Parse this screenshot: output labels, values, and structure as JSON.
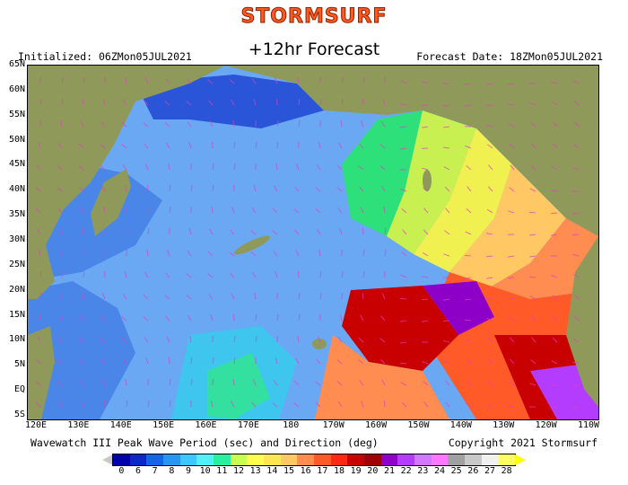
{
  "header": {
    "brand": "Stormsurf",
    "subtitle": "+12hr Forecast",
    "initialized": "Initialized: 06ZMon05JUL2021",
    "forecast_date": "Forecast Date: 18ZMon05JUL2021"
  },
  "map": {
    "lat_labels": [
      "65N",
      "60N",
      "55N",
      "50N",
      "45N",
      "40N",
      "35N",
      "30N",
      "25N",
      "20N",
      "15N",
      "10N",
      "5N",
      "EQ",
      "5S"
    ],
    "lon_labels": [
      "120E",
      "130E",
      "140E",
      "150E",
      "160E",
      "170E",
      "180",
      "170W",
      "160W",
      "150W",
      "140W",
      "130W",
      "120W",
      "110W"
    ],
    "colors": {
      "land": "#8f9a5a",
      "land_dark": "#6f7a40",
      "arrow": "#e040c0"
    }
  },
  "caption": {
    "left": "Wavewatch III Peak Wave Period (sec) and Direction (deg)",
    "right": "Copyright 2021 Stormsurf"
  },
  "colorbar": {
    "ticks": [
      "0",
      "6",
      "7",
      "8",
      "9",
      "10",
      "11",
      "12",
      "13",
      "14",
      "15",
      "16",
      "17",
      "18",
      "19",
      "20",
      "21",
      "22",
      "23",
      "24",
      "25",
      "26",
      "27",
      "28"
    ],
    "colors": [
      "#0000a8",
      "#0a28c8",
      "#1464e6",
      "#2896f0",
      "#3cc8ff",
      "#50f0ff",
      "#28f0a0",
      "#c8ff50",
      "#ffff50",
      "#ffe650",
      "#ffc864",
      "#ff8c50",
      "#ff5a28",
      "#ff2814",
      "#c80000",
      "#a00000",
      "#8c00c8",
      "#b43cff",
      "#d278ff",
      "#ff78ff",
      "#a0a0a0",
      "#c8c8c8",
      "#f0f0f0",
      "#ffff64"
    ]
  }
}
